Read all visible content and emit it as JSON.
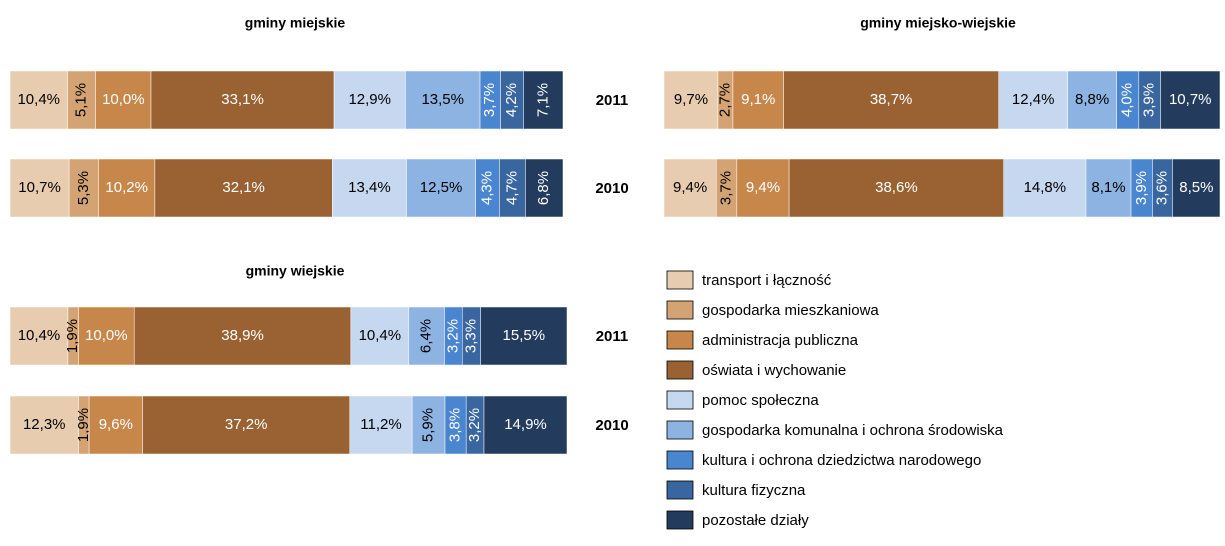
{
  "chart_data": [
    {
      "type": "bar",
      "stacked": true,
      "orientation": "horizontal",
      "title": "gminy miejskie",
      "categories": [
        "2011",
        "2010"
      ],
      "xlim": [
        0,
        100
      ],
      "series": [
        {
          "name": "transport i łączność",
          "color": "#e8ccb0",
          "values": [
            10.4,
            10.7
          ],
          "value_labels": [
            "10,4%",
            "10,7%"
          ]
        },
        {
          "name": "gospodarka mieszkaniowa",
          "color": "#d4a373",
          "values": [
            5.1,
            5.3
          ],
          "value_labels": [
            "5,1%",
            "5,3%"
          ]
        },
        {
          "name": "administracja publiczna",
          "color": "#c8874a",
          "values": [
            10.0,
            10.2
          ],
          "value_labels": [
            "10,0%",
            "10,2%"
          ]
        },
        {
          "name": "oświata i wychowanie",
          "color": "#9a6232",
          "values": [
            33.1,
            32.1
          ],
          "value_labels": [
            "33,1%",
            "32,1%"
          ]
        },
        {
          "name": "pomoc społeczna",
          "color": "#c6d8ef",
          "values": [
            12.9,
            13.4
          ],
          "value_labels": [
            "12,9%",
            "13,4%"
          ]
        },
        {
          "name": "gospodarka komunalna i ochrona środowiska",
          "color": "#8db3e2",
          "values": [
            13.5,
            12.5
          ],
          "value_labels": [
            "13,5%",
            "12,5%"
          ]
        },
        {
          "name": "kultura  i ochrona dziedzictwa narodowego",
          "color": "#4a86d0",
          "values": [
            3.7,
            4.3
          ],
          "value_labels": [
            "3,7%",
            "4,3%"
          ]
        },
        {
          "name": "kultura fizyczna",
          "color": "#3a66a0",
          "values": [
            4.2,
            4.7
          ],
          "value_labels": [
            "4,2%",
            "4,7%"
          ]
        },
        {
          "name": "pozostałe działy",
          "color": "#233c5e",
          "values": [
            7.1,
            6.8
          ],
          "value_labels": [
            "7,1%",
            "6,8%"
          ]
        }
      ]
    },
    {
      "type": "bar",
      "stacked": true,
      "orientation": "horizontal",
      "title": "gminy miejsko-wiejskie",
      "xlim": [
        0,
        100
      ],
      "series": [
        {
          "name": "transport i łączność",
          "color": "#e8ccb0",
          "values": [
            9.7,
            9.4
          ],
          "value_labels": [
            "9,7%",
            "9,4%"
          ]
        },
        {
          "name": "gospodarka mieszkaniowa",
          "color": "#d4a373",
          "values": [
            2.7,
            3.7
          ],
          "value_labels": [
            "2,7%",
            "3,7%"
          ]
        },
        {
          "name": "administracja publiczna",
          "color": "#c8874a",
          "values": [
            9.1,
            9.4
          ],
          "value_labels": [
            "9,1%",
            "9,4%"
          ]
        },
        {
          "name": "oświata i wychowanie",
          "color": "#9a6232",
          "values": [
            38.7,
            38.6
          ],
          "value_labels": [
            "38,7%",
            "38,6%"
          ]
        },
        {
          "name": "pomoc społeczna",
          "color": "#c6d8ef",
          "values": [
            12.4,
            14.8
          ],
          "value_labels": [
            "12,4%",
            "14,8%"
          ]
        },
        {
          "name": "gospodarka komunalna i ochrona środowiska",
          "color": "#8db3e2",
          "values": [
            8.8,
            8.1
          ],
          "value_labels": [
            "8,8%",
            "8,1%"
          ]
        },
        {
          "name": "kultura  i ochrona dziedzictwa narodowego",
          "color": "#4a86d0",
          "values": [
            4.0,
            3.9
          ],
          "value_labels": [
            "4,0%",
            "3,9%"
          ]
        },
        {
          "name": "kultura fizyczna",
          "color": "#3a66a0",
          "values": [
            3.9,
            3.6
          ],
          "value_labels": [
            "3,9%",
            "3,6%"
          ]
        },
        {
          "name": "pozostałe działy",
          "color": "#233c5e",
          "values": [
            10.7,
            8.5
          ],
          "value_labels": [
            "10,7%",
            "8,5%"
          ]
        }
      ]
    },
    {
      "type": "bar",
      "stacked": true,
      "orientation": "horizontal",
      "title": "gminy wiejskie",
      "categories": [
        "2011",
        "2010"
      ],
      "xlim": [
        0,
        100
      ],
      "series": [
        {
          "name": "transport i łączność",
          "color": "#e8ccb0",
          "values": [
            10.4,
            12.3
          ],
          "value_labels": [
            "10,4%",
            "12,3%"
          ]
        },
        {
          "name": "gospodarka mieszkaniowa",
          "color": "#d4a373",
          "values": [
            1.9,
            1.9
          ],
          "value_labels": [
            "1,9%",
            "1,9%"
          ]
        },
        {
          "name": "administracja publiczna",
          "color": "#c8874a",
          "values": [
            10.0,
            9.6
          ],
          "value_labels": [
            "10,0%",
            "9,6%"
          ]
        },
        {
          "name": "oświata i wychowanie",
          "color": "#9a6232",
          "values": [
            38.9,
            37.2
          ],
          "value_labels": [
            "38,9%",
            "37,2%"
          ]
        },
        {
          "name": "pomoc społeczna",
          "color": "#c6d8ef",
          "values": [
            10.4,
            11.2
          ],
          "value_labels": [
            "10,4%",
            "11,2%"
          ]
        },
        {
          "name": "gospodarka komunalna i ochrona środowiska",
          "color": "#8db3e2",
          "values": [
            6.4,
            5.9
          ],
          "value_labels": [
            "6,4%",
            "5,9%"
          ]
        },
        {
          "name": "kultura  i ochrona dziedzictwa narodowego",
          "color": "#4a86d0",
          "values": [
            3.2,
            3.8
          ],
          "value_labels": [
            "3,2%",
            "3,8%"
          ]
        },
        {
          "name": "kultura fizyczna",
          "color": "#3a66a0",
          "values": [
            3.3,
            3.2
          ],
          "value_labels": [
            "3,3%",
            "3,2%"
          ]
        },
        {
          "name": "pozostałe działy",
          "color": "#233c5e",
          "values": [
            15.5,
            14.9
          ],
          "value_labels": [
            "15,5%",
            "14,9%"
          ]
        }
      ]
    }
  ]
}
